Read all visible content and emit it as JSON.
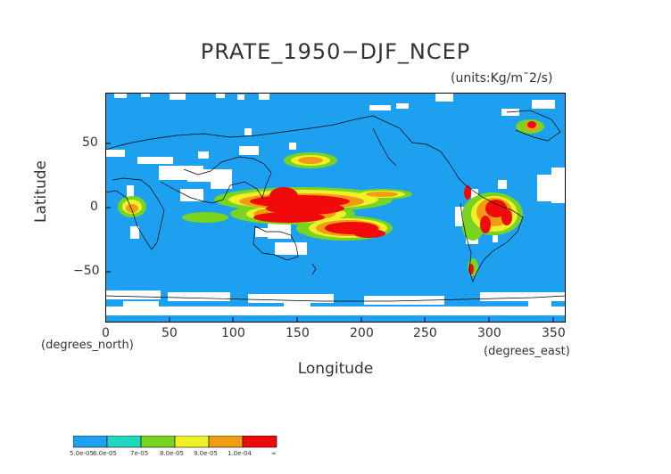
{
  "title": "PRATE_1950−DJF_NCEP",
  "units": "(units:Kg/m¯2/s)",
  "axes": {
    "xlabel": "Longitude",
    "ylabel": "Latitude",
    "x_note": "(degrees_east)",
    "y_note": "(degrees_north)",
    "xticks": [
      "0",
      "50",
      "100",
      "150",
      "200",
      "250",
      "300",
      "350"
    ],
    "yticks": [
      "50",
      "0",
      "−50"
    ],
    "xlim": [
      0,
      360
    ],
    "ylim": [
      -90,
      90
    ]
  },
  "colorbar": {
    "labels": [
      "5.0e-05",
      "6.0e-05",
      "7e-05",
      "8.0e-05",
      "9.0e-05",
      "1.0e-04",
      "∞"
    ],
    "colors": [
      "#1ea0f0",
      "#1ed8c0",
      "#78d41e",
      "#f0f028",
      "#f09c14",
      "#f00a0a"
    ]
  },
  "map": {
    "background_color": "#1ea0f0",
    "missing_color": "#ffffff"
  }
}
